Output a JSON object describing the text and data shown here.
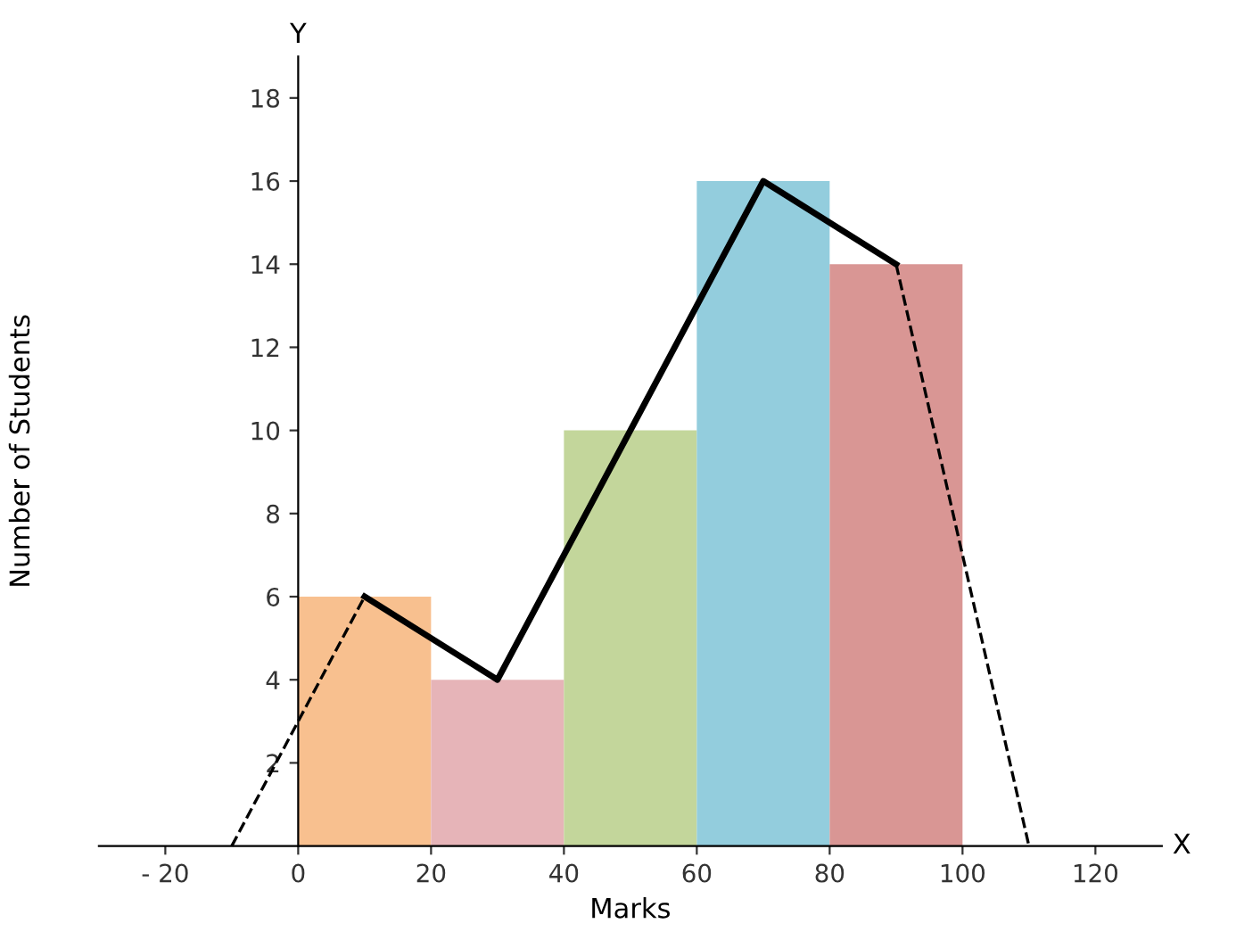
{
  "chart_data": {
    "type": "histogram",
    "xlabel": "Marks",
    "ylabel": "Number of Students",
    "annotations": [
      "Y",
      "X"
    ],
    "xlim": [
      -30,
      130
    ],
    "ylim": [
      0,
      19
    ],
    "xticks": [
      {
        "value": -20,
        "label": "- 20"
      },
      0,
      20,
      40,
      60,
      80,
      100,
      120
    ],
    "yticks": [
      2,
      4,
      6,
      8,
      10,
      12,
      14,
      16,
      18
    ],
    "grid": false,
    "legend": false,
    "marker": "none",
    "series": [
      {
        "bins": [
          0,
          20,
          40,
          60,
          80,
          100
        ],
        "values": [
          6,
          4,
          10,
          16,
          14
        ],
        "colors": [
          "#f8c08f",
          "#e6b4b8",
          "#c3d69b",
          "#93cddd",
          "#d99694"
        ]
      },
      {
        "type": "line",
        "x": [
          10,
          30,
          50,
          70,
          90
        ],
        "values": [
          6,
          4,
          10,
          16,
          14
        ],
        "color": "#000000",
        "line_style": "solid"
      },
      {
        "type": "line",
        "x": [
          -10,
          10
        ],
        "values": [
          0,
          6
        ],
        "color": "#000000",
        "line_style": "dashed"
      },
      {
        "type": "line",
        "x": [
          90,
          110
        ],
        "values": [
          14,
          0
        ],
        "color": "#000000",
        "line_style": "dashed"
      }
    ]
  }
}
